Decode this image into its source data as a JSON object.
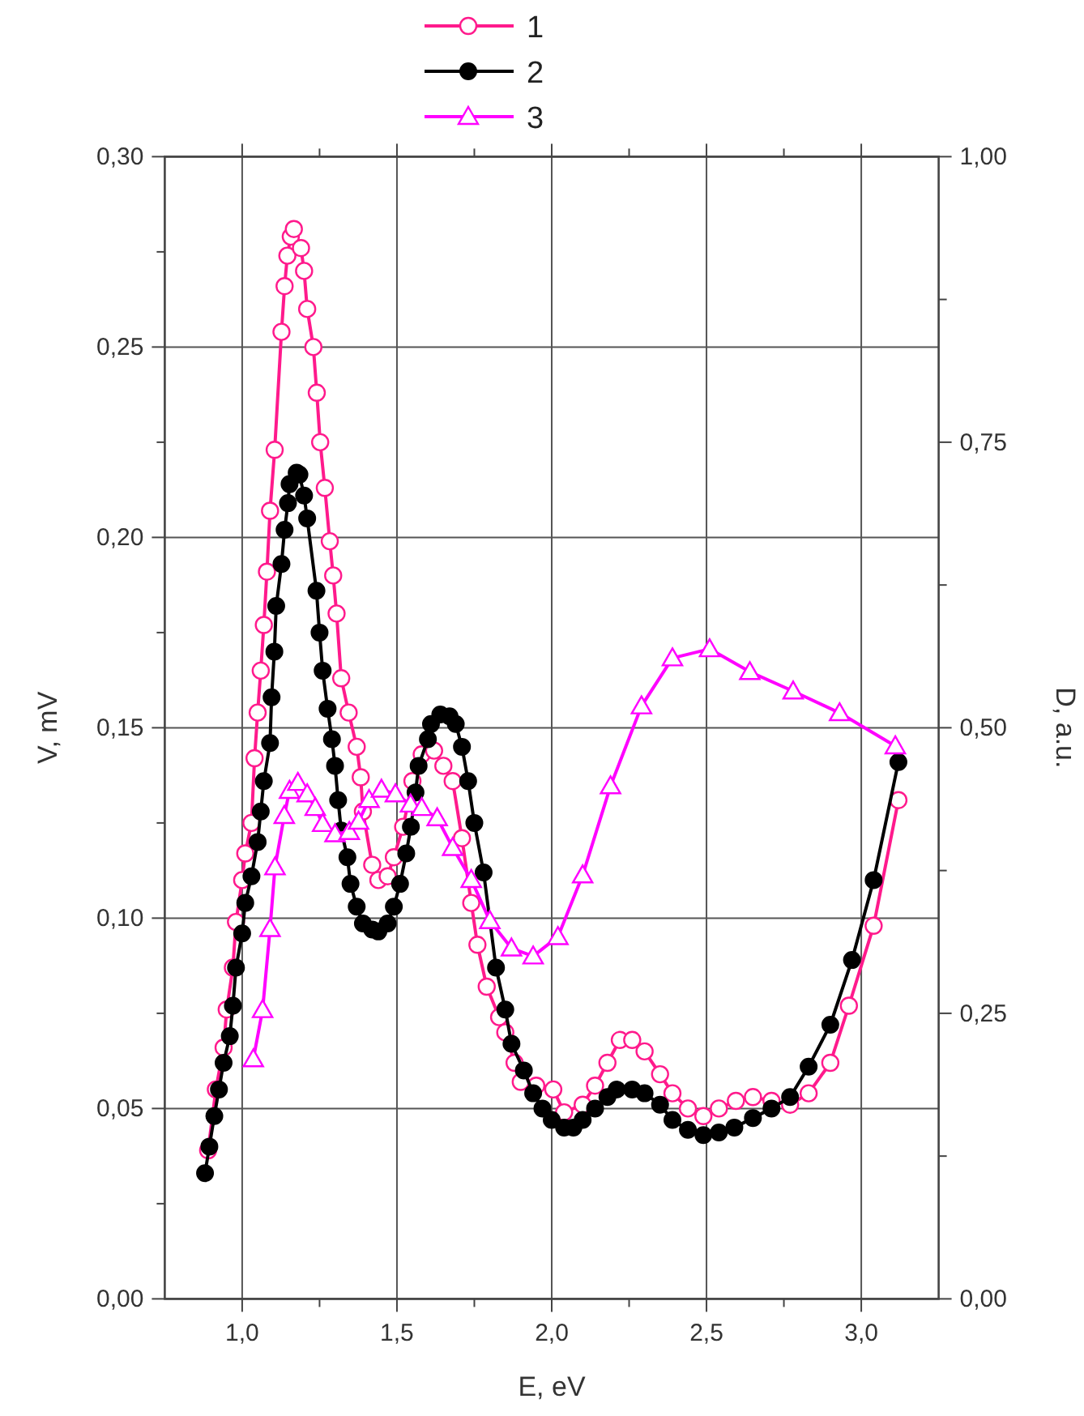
{
  "chart_data": {
    "type": "line",
    "xlabel": "E, eV",
    "ylabel": "V, mV",
    "y2label": "D, a.u.",
    "xlim": [
      0.75,
      3.25
    ],
    "xticks": [
      {
        "value": 1,
        "label": "1,0"
      },
      {
        "value": 1.25,
        "label": null
      },
      {
        "value": 1.5,
        "label": "1,5"
      },
      {
        "value": 1.75,
        "label": null
      },
      {
        "value": 2,
        "label": "2,0"
      },
      {
        "value": 2.25,
        "label": null
      },
      {
        "value": 2.5,
        "label": "2,5"
      },
      {
        "value": 2.75,
        "label": null
      },
      {
        "value": 3,
        "label": "3,0"
      }
    ],
    "ylim": [
      0,
      0.3
    ],
    "yticks": [
      {
        "value": 0,
        "label": "0,00"
      },
      {
        "value": 0.025,
        "label": null
      },
      {
        "value": 0.05,
        "label": "0,05"
      },
      {
        "value": 0.075,
        "label": null
      },
      {
        "value": 0.1,
        "label": "0,10"
      },
      {
        "value": 0.125,
        "label": null
      },
      {
        "value": 0.15,
        "label": "0,15"
      },
      {
        "value": 0.175,
        "label": null
      },
      {
        "value": 0.2,
        "label": "0,20"
      },
      {
        "value": 0.225,
        "label": null
      },
      {
        "value": 0.25,
        "label": "0,25"
      },
      {
        "value": 0.275,
        "label": null
      },
      {
        "value": 0.3,
        "label": "0,30"
      }
    ],
    "y2lim": [
      0,
      1
    ],
    "y2ticks": [
      {
        "value": 0,
        "label": "0,00"
      },
      {
        "value": 0.125,
        "label": null
      },
      {
        "value": 0.25,
        "label": "0,25"
      },
      {
        "value": 0.375,
        "label": null
      },
      {
        "value": 0.5,
        "label": "0,50"
      },
      {
        "value": 0.625,
        "label": null
      },
      {
        "value": 0.75,
        "label": "0,75"
      },
      {
        "value": 0.875,
        "label": null
      },
      {
        "value": 1,
        "label": "1,00"
      }
    ],
    "grid": true,
    "legend": "top",
    "line_style": "solid",
    "series": [
      {
        "name": "1",
        "color": "#ff1a8c",
        "marker": "circle",
        "x": [
          0.89,
          0.915,
          0.94,
          0.95,
          0.97,
          0.98,
          1.0,
          1.01,
          1.03,
          1.04,
          1.05,
          1.06,
          1.07,
          1.08,
          1.09,
          1.105,
          1.127,
          1.137,
          1.146,
          1.157,
          1.167,
          1.19,
          1.2,
          1.21,
          1.23,
          1.241,
          1.252,
          1.267,
          1.283,
          1.294,
          1.305,
          1.32,
          1.344,
          1.37,
          1.383,
          1.39,
          1.42,
          1.44,
          1.47,
          1.49,
          1.52,
          1.55,
          1.58,
          1.62,
          1.65,
          1.68,
          1.71,
          1.74,
          1.76,
          1.79,
          1.83,
          1.85,
          1.88,
          1.9,
          1.95,
          2.005,
          2.04,
          2.1,
          2.14,
          2.18,
          2.22,
          2.26,
          2.3,
          2.35,
          2.39,
          2.44,
          2.49,
          2.54,
          2.595,
          2.65,
          2.71,
          2.77,
          2.83,
          2.9,
          2.96,
          3.04,
          3.12
        ],
        "values": [
          0.039,
          0.055,
          0.066,
          0.076,
          0.087,
          0.099,
          0.11,
          0.117,
          0.125,
          0.142,
          0.154,
          0.165,
          0.177,
          0.191,
          0.207,
          0.223,
          0.254,
          0.266,
          0.274,
          0.279,
          0.281,
          0.276,
          0.27,
          0.26,
          0.25,
          0.238,
          0.225,
          0.213,
          0.199,
          0.19,
          0.18,
          0.163,
          0.154,
          0.145,
          0.137,
          0.128,
          0.114,
          0.11,
          0.111,
          0.116,
          0.124,
          0.136,
          0.143,
          0.144,
          0.14,
          0.136,
          0.121,
          0.104,
          0.093,
          0.082,
          0.074,
          0.07,
          0.062,
          0.057,
          0.056,
          0.055,
          0.049,
          0.051,
          0.056,
          0.062,
          0.068,
          0.068,
          0.065,
          0.059,
          0.054,
          0.05,
          0.048,
          0.05,
          0.052,
          0.053,
          0.052,
          0.051,
          0.054,
          0.062,
          0.077,
          0.098,
          0.131
        ]
      },
      {
        "name": "2",
        "color": "#000000",
        "marker": "circle",
        "x": [
          0.88,
          0.894,
          0.91,
          0.925,
          0.94,
          0.96,
          0.97,
          0.98,
          1.0,
          1.01,
          1.03,
          1.05,
          1.06,
          1.07,
          1.09,
          1.095,
          1.104,
          1.11,
          1.127,
          1.137,
          1.148,
          1.153,
          1.176,
          1.185,
          1.2,
          1.21,
          1.24,
          1.25,
          1.26,
          1.276,
          1.29,
          1.3,
          1.31,
          1.32,
          1.34,
          1.35,
          1.37,
          1.39,
          1.42,
          1.44,
          1.47,
          1.49,
          1.51,
          1.53,
          1.545,
          1.56,
          1.57,
          1.6,
          1.61,
          1.64,
          1.67,
          1.69,
          1.71,
          1.73,
          1.75,
          1.78,
          1.82,
          1.85,
          1.87,
          1.91,
          1.94,
          1.97,
          2.0,
          2.04,
          2.07,
          2.1,
          2.14,
          2.18,
          2.21,
          2.26,
          2.3,
          2.35,
          2.39,
          2.44,
          2.49,
          2.54,
          2.59,
          2.65,
          2.71,
          2.77,
          2.83,
          2.9,
          2.97,
          3.04,
          3.12
        ],
        "values": [
          0.033,
          0.04,
          0.048,
          0.055,
          0.062,
          0.069,
          0.077,
          0.087,
          0.096,
          0.104,
          0.111,
          0.12,
          0.128,
          0.136,
          0.146,
          0.158,
          0.17,
          0.182,
          0.193,
          0.202,
          0.209,
          0.214,
          0.217,
          0.2165,
          0.211,
          0.205,
          0.186,
          0.175,
          0.165,
          0.155,
          0.147,
          0.14,
          0.131,
          0.123,
          0.116,
          0.109,
          0.103,
          0.0986,
          0.097,
          0.0965,
          0.0986,
          0.103,
          0.109,
          0.117,
          0.124,
          0.133,
          0.14,
          0.147,
          0.151,
          0.1535,
          0.153,
          0.151,
          0.145,
          0.136,
          0.125,
          0.112,
          0.087,
          0.076,
          0.067,
          0.06,
          0.054,
          0.05,
          0.047,
          0.045,
          0.045,
          0.047,
          0.05,
          0.053,
          0.055,
          0.055,
          0.054,
          0.051,
          0.047,
          0.0444,
          0.043,
          0.0437,
          0.045,
          0.0475,
          0.05,
          0.053,
          0.061,
          0.072,
          0.089,
          0.11,
          0.141
        ]
      },
      {
        "name": "3",
        "color": "#ff00ff",
        "marker": "triangle",
        "axis": "y2",
        "x": [
          1.036,
          1.066,
          1.09,
          1.106,
          1.136,
          1.153,
          1.18,
          1.21,
          1.236,
          1.26,
          1.3,
          1.346,
          1.376,
          1.41,
          1.45,
          1.495,
          1.544,
          1.58,
          1.63,
          1.68,
          1.74,
          1.8,
          1.87,
          1.94,
          2.02,
          2.1,
          2.19,
          2.29,
          2.39,
          2.51,
          2.64,
          2.78,
          2.93,
          3.11
        ],
        "values": [
          0.21,
          0.253,
          0.324,
          0.378,
          0.423,
          0.445,
          0.452,
          0.442,
          0.43,
          0.416,
          0.407,
          0.409,
          0.418,
          0.437,
          0.446,
          0.442,
          0.433,
          0.43,
          0.421,
          0.395,
          0.367,
          0.331,
          0.307,
          0.3,
          0.317,
          0.371,
          0.449,
          0.519,
          0.561,
          0.569,
          0.549,
          0.532,
          0.513,
          0.484
        ]
      }
    ]
  }
}
